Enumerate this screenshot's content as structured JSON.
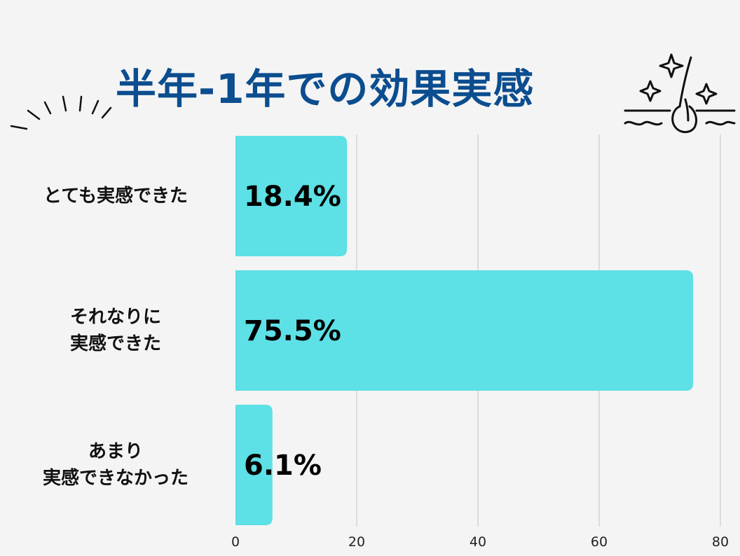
{
  "chart_data": {
    "type": "bar",
    "orientation": "horizontal",
    "title": "半年-1年での効果実感",
    "categories": [
      "とても実感できた",
      "それなりに\n実感できた",
      "あまり\n実感できなかった"
    ],
    "values": [
      18.4,
      75.5,
      6.1
    ],
    "data_labels": [
      "18.4%",
      "75.5%",
      "6.1%"
    ],
    "x_ticks": [
      0,
      20,
      40,
      60,
      80
    ],
    "xlim": [
      0,
      80
    ],
    "grid": true,
    "bar_color": "#5de0e6",
    "grid_color": "#c4c4c4"
  },
  "colors": {
    "title": "#0b4d8f",
    "background": "#f4f4f4"
  },
  "icons": [
    "sparkle-icon",
    "hair-follicle-icon",
    "burst-lines-icon"
  ]
}
